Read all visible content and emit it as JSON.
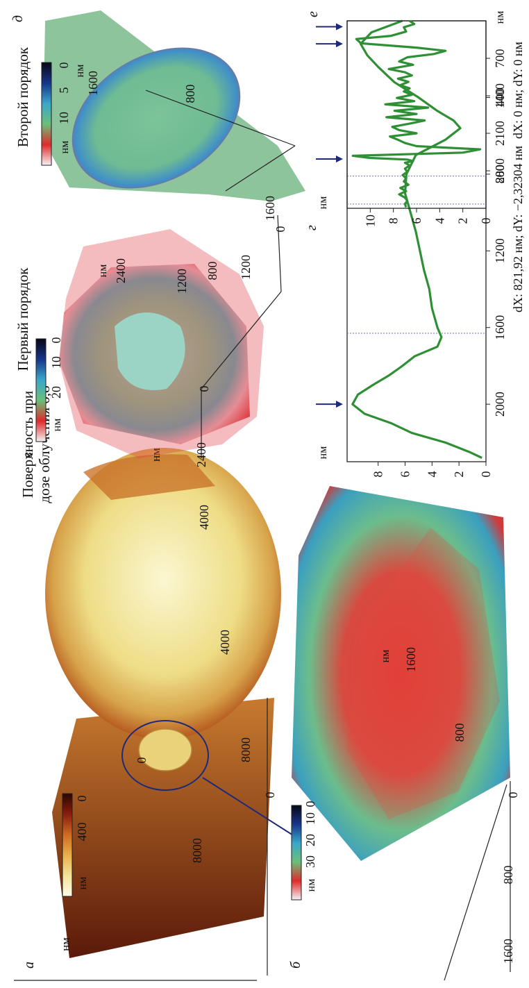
{
  "figure": {
    "col1": {
      "heading_line1": "Поверхность при",
      "heading_line2": "дозе облучения 0,8",
      "panel_a": {
        "label": "а",
        "colorbar": {
          "unit": "нм",
          "ticks": [
            "400",
            "0"
          ],
          "colors": [
            "#fdfbe8",
            "#f4e39a",
            "#e8b04a",
            "#cf6a22",
            "#8a1d0c",
            "#2a0703"
          ]
        },
        "axis_x": {
          "ticks": [
            "0",
            "4000",
            "8000"
          ],
          "unit": "нм"
        },
        "axis_y": {
          "ticks": [
            "0",
            "4000",
            "8000"
          ],
          "unit": "нм"
        }
      },
      "panel_b": {
        "label": "б",
        "colorbar": {
          "unit": "нм",
          "ticks": [
            "30",
            "20",
            "10",
            "0"
          ],
          "colors": [
            "#f5f3f5",
            "#e02a2a",
            "#6bbf79",
            "#3aa7c9",
            "#17358a",
            "#070715"
          ]
        },
        "axis_x": {
          "ticks": [
            "0",
            "800",
            "1600"
          ],
          "unit": "нм"
        },
        "axis_y": {
          "ticks": [
            "800",
            "1600"
          ]
        }
      }
    },
    "col2": {
      "heading": "Первый порядок",
      "panel_v": {
        "label": "в",
        "colorbar": {
          "unit": "нм",
          "ticks": [
            "20",
            "10",
            "0"
          ],
          "colors": [
            "#f5f3f5",
            "#e02a2a",
            "#6bbf79",
            "#3aa7c9",
            "#17358a",
            "#070715"
          ]
        },
        "axis_x": {
          "ticks": [
            "0",
            "1200",
            "2400"
          ],
          "unit": "нм"
        },
        "axis_y": {
          "ticks": [
            "0",
            "1200",
            "2400"
          ]
        }
      },
      "panel_g": {
        "label": "г",
        "y_unit": "нм",
        "x_unit": "нм",
        "caption": "dX: 821,92 нм; dY: −2,32304 нм"
      }
    },
    "col3": {
      "heading": "Второй порядок",
      "panel_d": {
        "label": "д",
        "colorbar": {
          "unit": "нм",
          "ticks": [
            "10",
            "5",
            "0"
          ],
          "colors": [
            "#f5f3f5",
            "#e02a2a",
            "#6bbf79",
            "#3aa7c9",
            "#17358a",
            "#070715"
          ]
        },
        "axis_x": {
          "ticks": [
            "800",
            "1600"
          ],
          "unit": "нм"
        },
        "axis_y": {
          "ticks": [
            "800",
            "1600"
          ]
        }
      },
      "panel_e": {
        "label": "е",
        "y_unit": "нм",
        "x_unit": "нм",
        "caption": "dX: 0 нм; dY: 0 нм"
      }
    }
  },
  "chart_data": [
    {
      "type": "line",
      "panel": "г",
      "x_ticks": [
        400,
        800,
        1200,
        1600,
        2000
      ],
      "y_ticks": [
        0,
        2,
        4,
        6,
        8
      ],
      "xlim": [
        0,
        2300
      ],
      "ylim": [
        0,
        10.3
      ],
      "markers_x": [
        120,
        2000
      ],
      "cursor_lines_x": [
        810,
        1630
      ],
      "series": [
        {
          "color": "#2f8f35",
          "x": [
            0,
            60,
            120,
            180,
            240,
            320,
            400,
            470,
            520,
            560,
            620,
            700,
            800,
            900,
            1000,
            1100,
            1200,
            1300,
            1400,
            1500,
            1600,
            1650,
            1700,
            1750,
            1800,
            1850,
            1900,
            1950,
            2000,
            2050,
            2100,
            2150,
            2200,
            2250,
            2280
          ],
          "y": [
            6.2,
            8.5,
            9.3,
            8.8,
            8.0,
            6.8,
            5.0,
            3.6,
            2.4,
            1.9,
            3.0,
            5.2,
            5.9,
            6.0,
            5.6,
            5.2,
            4.9,
            4.6,
            4.2,
            4.0,
            3.6,
            3.3,
            3.6,
            5.3,
            6.2,
            7.2,
            8.4,
            9.5,
            9.9,
            9.0,
            7.0,
            5.5,
            3.0,
            1.2,
            0.3
          ]
        }
      ]
    },
    {
      "type": "line",
      "panel": "е",
      "x_ticks": [
        700,
        1400,
        2100,
        2800
      ],
      "y_ticks": [
        0,
        2,
        4,
        6,
        8,
        10
      ],
      "xlim": [
        0,
        3500
      ],
      "ylim": [
        0,
        12
      ],
      "markers_x": [
        110,
        2580
      ],
      "cursor_lines_x": [
        3420
      ],
      "series": [
        {
          "color": "#2f8f35",
          "x": [
            0,
            60,
            120,
            200,
            280,
            340,
            420,
            500,
            560,
            620,
            680,
            760,
            820,
            900,
            960,
            1020,
            1080,
            1140,
            1200,
            1260,
            1320,
            1380,
            1440,
            1500,
            1560,
            1620,
            1680,
            1740,
            1800,
            1860,
            1920,
            1980,
            2040,
            2100,
            2160,
            2220,
            2280,
            2340,
            2400,
            2460,
            2520,
            2560,
            2590,
            2620,
            2650,
            2700,
            2760,
            2820,
            2880,
            2940,
            3000,
            3060,
            3120,
            3180,
            3240,
            3300,
            3360,
            3420,
            3480
          ],
          "y": [
            6.6,
            6.2,
            7.1,
            6.9,
            8.2,
            11.2,
            10.8,
            6.0,
            3.5,
            4.5,
            6.8,
            7.5,
            6.3,
            8.4,
            7.0,
            6.4,
            7.6,
            6.7,
            7.4,
            6.6,
            7.1,
            6.4,
            7.7,
            6.2,
            8.7,
            5.0,
            7.9,
            6.0,
            8.6,
            5.3,
            6.6,
            8.1,
            7.5,
            6.0,
            8.3,
            7.6,
            7.0,
            6.0,
            0.5,
            2.0,
            11.5,
            10.0,
            6.8,
            6.3,
            7.0,
            6.6,
            7.0,
            6.8,
            7.2,
            6.9,
            7.1,
            6.7,
            7.4,
            6.9,
            7.5,
            7.0,
            6.8,
            7.0,
            6.9
          ]
        }
      ]
    }
  ]
}
